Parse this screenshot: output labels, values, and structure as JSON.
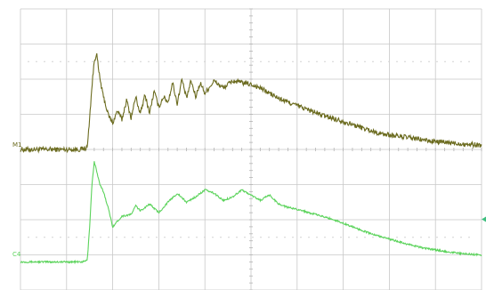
{
  "colors": {
    "background": "#ffffff",
    "grid": "#c8c8c8",
    "grid_dots": "#d2d2d2",
    "trace_m1": "#6b6b1f",
    "trace_c4": "#5bd35b",
    "marker": "#3fbf7f"
  },
  "chart_data": {
    "type": "line",
    "title": "",
    "xlabel": "",
    "ylabel": "",
    "grid": true,
    "grid_divisions": {
      "x": 10,
      "y": 8
    },
    "xlim": [
      0,
      10
    ],
    "ylim": [
      -4,
      4
    ],
    "x_unit": "div",
    "y_unit": "div",
    "series": [
      {
        "name": "M1",
        "label": "M1",
        "color": "#6b6b1f",
        "noise_amplitude": 0.07,
        "x": [
          0,
          1.3,
          1.45,
          1.5,
          1.55,
          1.6,
          1.65,
          1.7,
          1.78,
          1.9,
          2.0,
          2.1,
          2.2,
          2.3,
          2.4,
          2.5,
          2.6,
          2.7,
          2.8,
          2.9,
          3.0,
          3.1,
          3.2,
          3.3,
          3.4,
          3.5,
          3.6,
          3.7,
          3.8,
          3.9,
          4.0,
          4.2,
          4.4,
          4.6,
          4.8,
          5.0,
          5.2,
          5.4,
          5.6,
          5.8,
          6.0,
          6.3,
          6.6,
          7.0,
          7.4,
          7.8,
          8.2,
          8.6,
          9.0,
          9.4,
          9.7,
          10.0
        ],
        "y": [
          0,
          0,
          0.05,
          0.9,
          1.8,
          2.5,
          2.75,
          2.2,
          1.6,
          1.0,
          0.75,
          1.1,
          0.85,
          1.4,
          0.9,
          1.5,
          1.0,
          1.55,
          1.05,
          1.65,
          1.2,
          1.5,
          1.35,
          1.9,
          1.3,
          2.0,
          1.45,
          1.95,
          1.5,
          1.9,
          1.6,
          1.95,
          1.75,
          1.95,
          1.9,
          1.85,
          1.75,
          1.6,
          1.45,
          1.35,
          1.25,
          1.1,
          0.95,
          0.8,
          0.62,
          0.45,
          0.38,
          0.3,
          0.22,
          0.18,
          0.15,
          0.12
        ]
      },
      {
        "name": "C4",
        "label": "C4",
        "color": "#5bd35b",
        "noise_amplitude": 0.025,
        "x": [
          0,
          1.35,
          1.45,
          1.5,
          1.55,
          1.6,
          1.65,
          1.72,
          1.8,
          1.9,
          2.0,
          2.2,
          2.4,
          2.5,
          2.6,
          2.8,
          3.0,
          3.2,
          3.4,
          3.6,
          3.8,
          4.0,
          4.2,
          4.4,
          4.6,
          4.8,
          5.0,
          5.2,
          5.4,
          5.6,
          5.8,
          6.0,
          6.4,
          6.8,
          7.2,
          7.6,
          8.0,
          8.4,
          8.8,
          9.2,
          9.6,
          10.0
        ],
        "y": [
          -3.2,
          -3.2,
          -3.15,
          -2.2,
          -1.0,
          -0.35,
          -0.6,
          -1.0,
          -1.2,
          -1.65,
          -2.2,
          -1.9,
          -1.85,
          -1.6,
          -1.75,
          -1.55,
          -1.8,
          -1.5,
          -1.25,
          -1.5,
          -1.35,
          -1.15,
          -1.25,
          -1.45,
          -1.35,
          -1.15,
          -1.3,
          -1.45,
          -1.3,
          -1.55,
          -1.65,
          -1.7,
          -1.85,
          -2.0,
          -2.2,
          -2.4,
          -2.55,
          -2.7,
          -2.82,
          -2.9,
          -2.97,
          -3.0
        ]
      }
    ]
  }
}
